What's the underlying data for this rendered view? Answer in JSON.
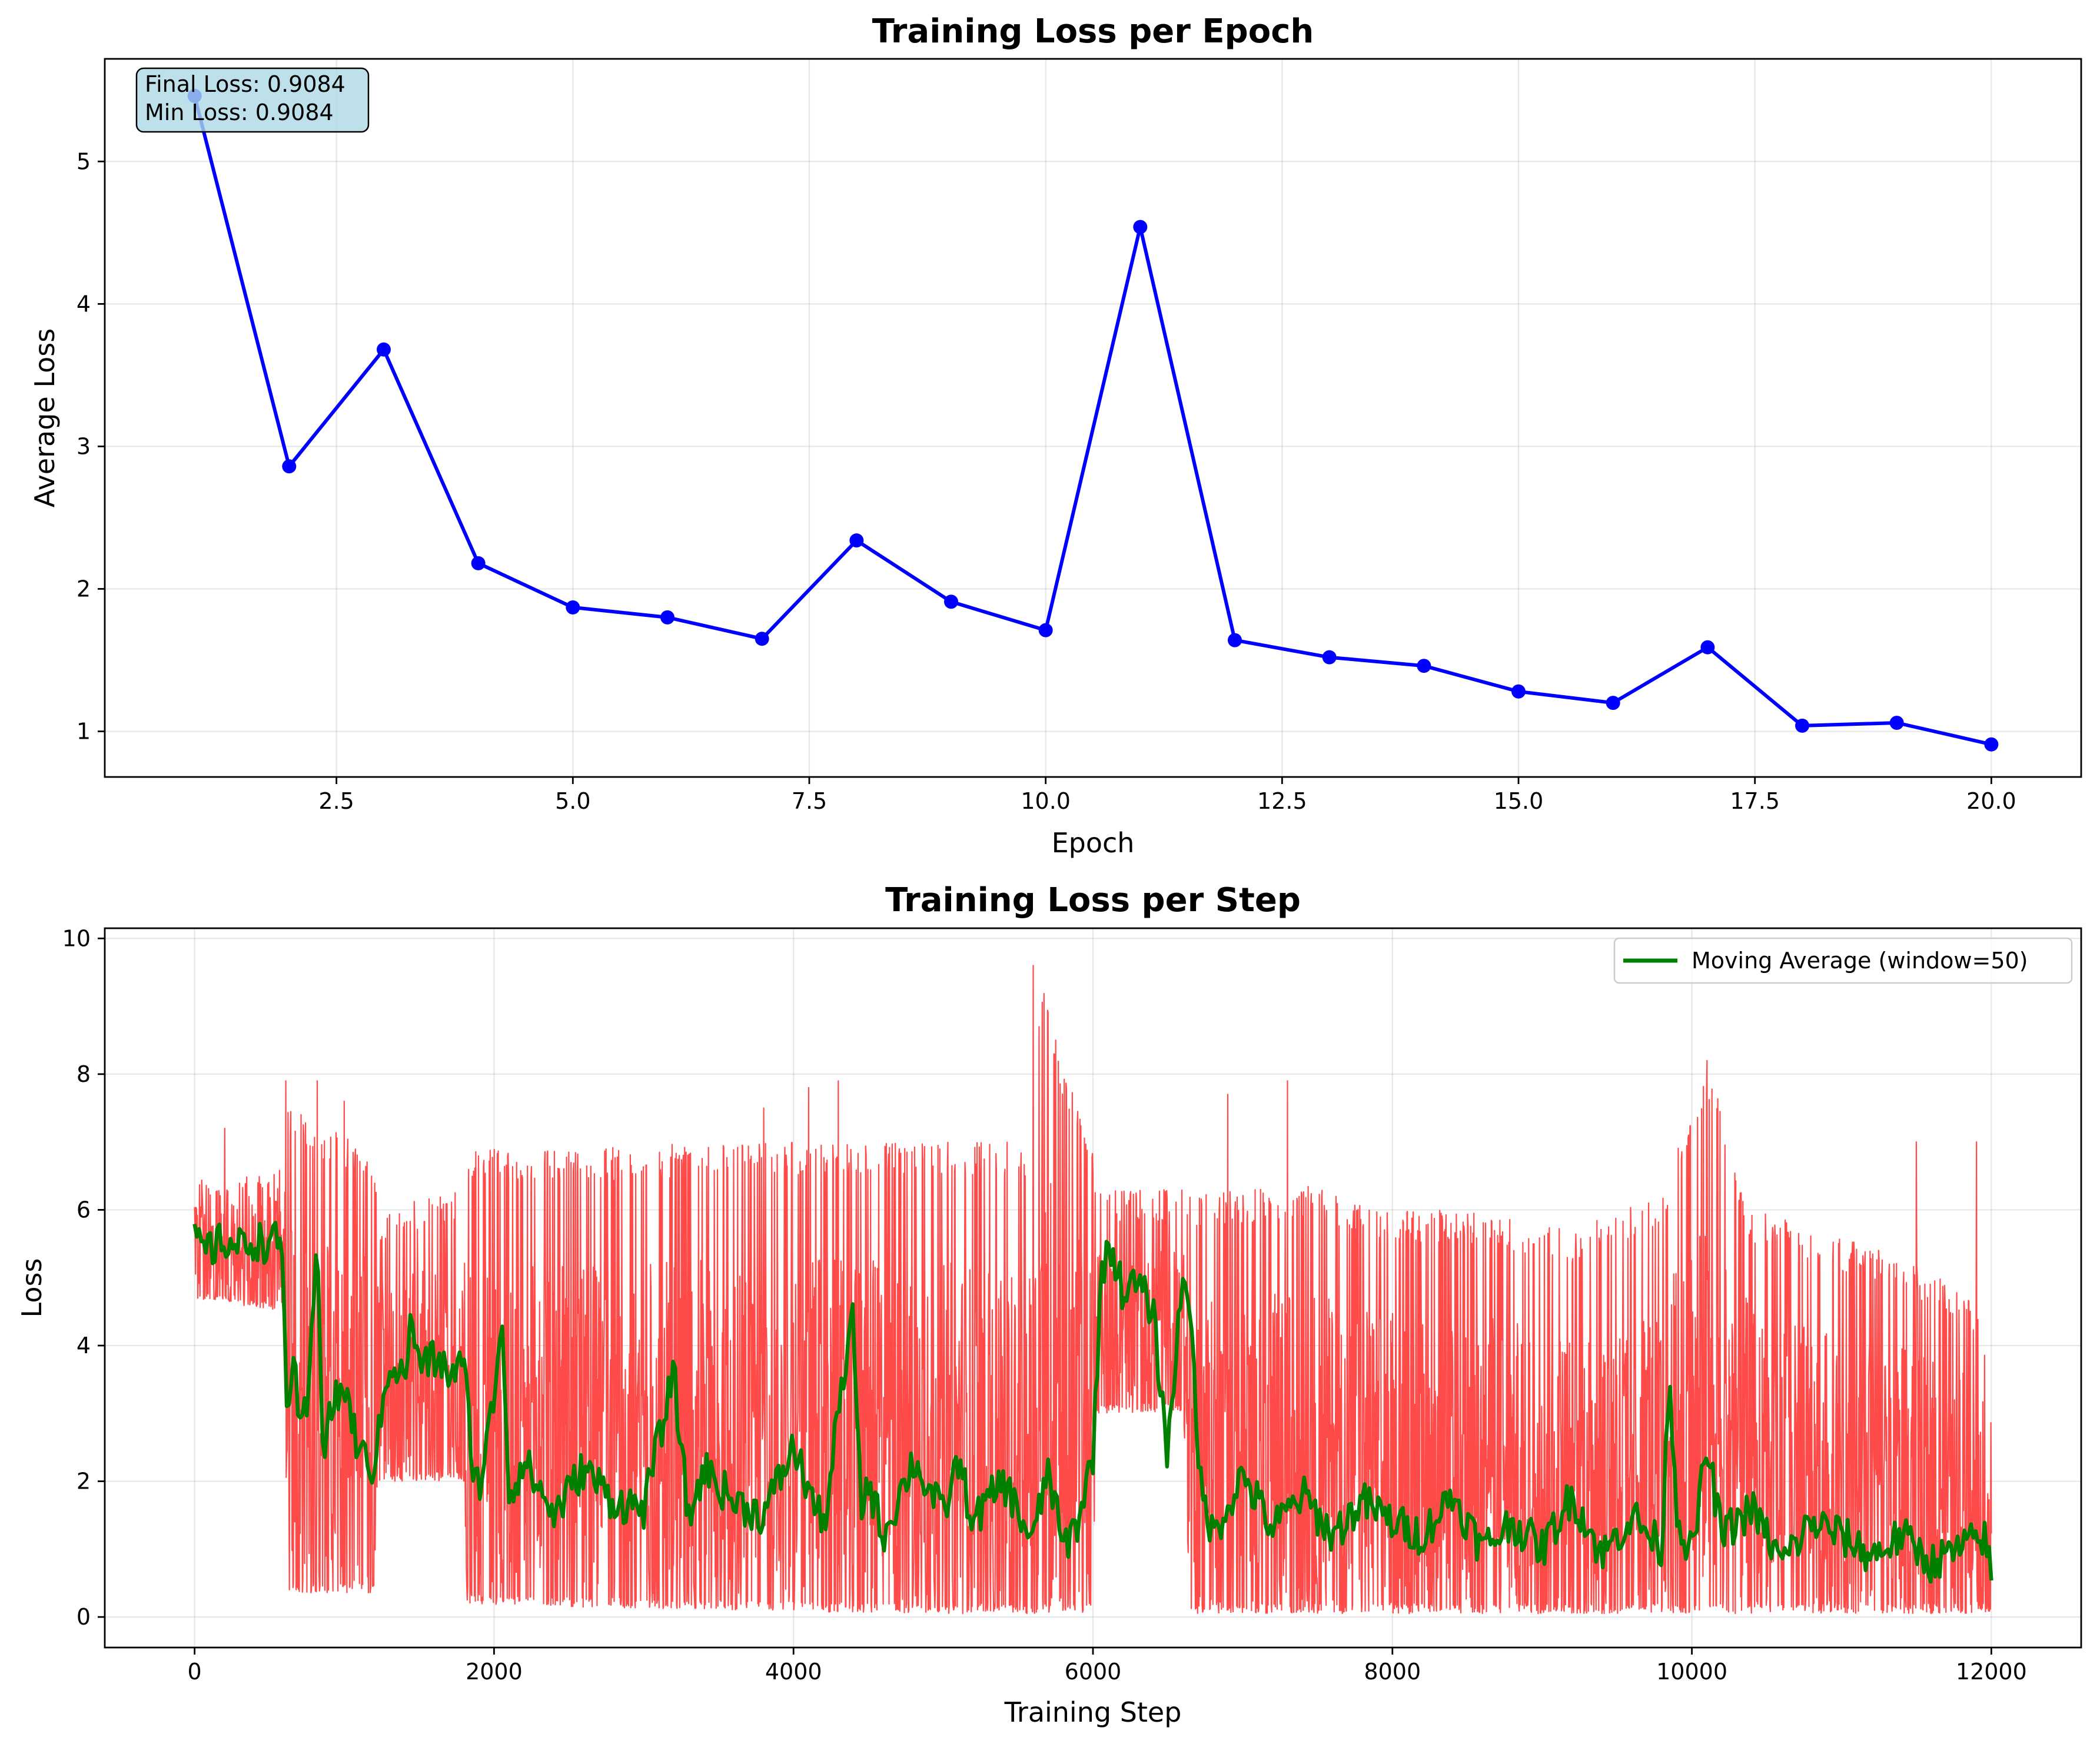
{
  "colors": {
    "epoch_line": "#0000ff",
    "step_line": "#ff4040",
    "moving_average": "#008000",
    "stats_box": "#add8e6"
  },
  "chart_data": [
    {
      "type": "line",
      "title": "Training Loss per Epoch",
      "xlabel": "Epoch",
      "ylabel": "Average Loss",
      "xlim": [
        0.05,
        20.95
      ],
      "ylim": [
        0.68,
        5.72
      ],
      "xticks": [
        2.5,
        5.0,
        7.5,
        10.0,
        12.5,
        15.0,
        17.5,
        20.0
      ],
      "xtick_labels": [
        "2.5",
        "5.0",
        "7.5",
        "10.0",
        "12.5",
        "15.0",
        "17.5",
        "20.0"
      ],
      "yticks": [
        1,
        2,
        3,
        4,
        5
      ],
      "ytick_labels": [
        "1",
        "2",
        "3",
        "4",
        "5"
      ],
      "grid": true,
      "x": [
        1,
        2,
        3,
        4,
        5,
        6,
        7,
        8,
        9,
        10,
        11,
        12,
        13,
        14,
        15,
        16,
        17,
        18,
        19,
        20
      ],
      "values": [
        5.46,
        2.86,
        3.68,
        2.18,
        1.87,
        1.8,
        1.65,
        2.34,
        1.91,
        1.71,
        4.54,
        1.64,
        1.52,
        1.46,
        1.28,
        1.2,
        1.59,
        1.04,
        1.06,
        0.9084
      ],
      "annotation": {
        "lines": [
          "Final Loss: 0.9084",
          "Min Loss: 0.9084"
        ],
        "placement": "top-left"
      }
    },
    {
      "type": "line",
      "title": "Training Loss per Step",
      "xlabel": "Training Step",
      "ylabel": "Loss",
      "xlim": [
        -600,
        12600
      ],
      "ylim": [
        -0.45,
        10.15
      ],
      "xticks": [
        0,
        2000,
        4000,
        6000,
        8000,
        10000,
        12000
      ],
      "xtick_labels": [
        "0",
        "2000",
        "4000",
        "6000",
        "8000",
        "10000",
        "12000"
      ],
      "yticks": [
        0,
        2,
        4,
        6,
        8,
        10
      ],
      "ytick_labels": [
        "0",
        "2",
        "4",
        "6",
        "8",
        "10"
      ],
      "grid": true,
      "legend": {
        "placement": "top-right",
        "entries": [
          "Moving Average (window=50)"
        ]
      },
      "total_steps": 12000,
      "series": [
        {
          "style": "raw per-step loss, dense oscillation",
          "color": "#ff4040",
          "envelope": {
            "x": [
              0,
              600,
              620,
              1200,
              1220,
              1800,
              1820,
              2400,
              3600,
              4800,
              5600,
              5650,
              5750,
              6000,
              6020,
              6600,
              6650,
              7400,
              8000,
              8600,
              9200,
              9800,
              10100,
              10400,
              11000,
              11400,
              11800,
              12000
            ],
            "low": [
              4.7,
              4.5,
              0.35,
              0.35,
              2.0,
              2.0,
              0.2,
              0.15,
              0.1,
              0.05,
              0.05,
              0.05,
              0.05,
              0.05,
              3.0,
              3.0,
              0.05,
              0.05,
              0.05,
              0.05,
              0.05,
              0.05,
              0.05,
              0.05,
              0.05,
              0.05,
              0.05,
              0.05
            ],
            "high": [
              6.5,
              6.6,
              7.5,
              6.9,
              6.0,
              6.3,
              6.9,
              6.9,
              7.0,
              7.0,
              7.0,
              9.6,
              8.4,
              7.0,
              6.3,
              6.3,
              6.2,
              6.4,
              6.0,
              6.0,
              5.7,
              6.3,
              8.2,
              6.0,
              5.6,
              5.3,
              4.9,
              4.0
            ]
          },
          "spikes": [
            [
              200,
              7.2
            ],
            [
              610,
              7.9
            ],
            [
              820,
              7.9
            ],
            [
              1000,
              7.6
            ],
            [
              3800,
              7.5
            ],
            [
              4100,
              7.8
            ],
            [
              4300,
              7.9
            ],
            [
              5600,
              9.6
            ],
            [
              5750,
              8.5
            ],
            [
              6900,
              7.7
            ],
            [
              7300,
              7.9
            ],
            [
              10100,
              8.2
            ],
            [
              11500,
              7.0
            ],
            [
              11900,
              7.0
            ]
          ]
        },
        {
          "name": "Moving Average (window=50)",
          "color": "#008000",
          "x": [
            0,
            100,
            200,
            300,
            400,
            500,
            580,
            620,
            660,
            700,
            760,
            820,
            860,
            900,
            1000,
            1100,
            1200,
            1300,
            1400,
            1450,
            1500,
            1600,
            1700,
            1800,
            1850,
            1900,
            2000,
            2050,
            2100,
            2200,
            2400,
            2600,
            2800,
            3000,
            3200,
            3300,
            3400,
            3600,
            3800,
            4000,
            4200,
            4300,
            4400,
            4450,
            4500,
            4600,
            4800,
            5000,
            5100,
            5200,
            5400,
            5600,
            5700,
            5800,
            5900,
            6000,
            6050,
            6100,
            6200,
            6300,
            6400,
            6500,
            6600,
            6650,
            6700,
            6800,
            7000,
            7200,
            7400,
            7600,
            7800,
            8000,
            8200,
            8400,
            8600,
            8800,
            9000,
            9200,
            9400,
            9600,
            9800,
            9850,
            9900,
            10000,
            10100,
            10200,
            10400,
            10600,
            10800,
            11000,
            11200,
            11400,
            11600,
            11800,
            11950,
            12000
          ],
          "values": [
            5.5,
            5.4,
            5.55,
            5.45,
            5.55,
            5.5,
            5.55,
            3.0,
            3.9,
            2.6,
            3.2,
            5.6,
            2.4,
            3.0,
            3.4,
            2.4,
            2.2,
            3.8,
            3.5,
            4.4,
            3.7,
            3.8,
            3.6,
            3.7,
            2.4,
            1.9,
            3.2,
            4.6,
            1.8,
            2.3,
            1.5,
            2.2,
            1.7,
            1.6,
            3.6,
            1.4,
            2.2,
            1.7,
            1.5,
            2.5,
            1.3,
            3.0,
            4.4,
            1.6,
            2.0,
            1.2,
            2.3,
            1.5,
            2.3,
            1.4,
            2.0,
            1.1,
            2.2,
            1.0,
            1.4,
            2.4,
            4.8,
            5.6,
            4.8,
            4.9,
            4.5,
            2.4,
            5.1,
            4.7,
            2.2,
            1.2,
            2.1,
            1.3,
            1.8,
            1.2,
            1.7,
            1.4,
            1.2,
            1.8,
            1.0,
            1.4,
            1.0,
            1.8,
            0.9,
            1.5,
            1.0,
            3.7,
            1.5,
            0.9,
            2.5,
            1.2,
            1.6,
            0.8,
            1.4,
            1.2,
            0.9,
            1.2,
            0.8,
            1.0,
            1.2,
            0.6
          ]
        }
      ]
    }
  ]
}
